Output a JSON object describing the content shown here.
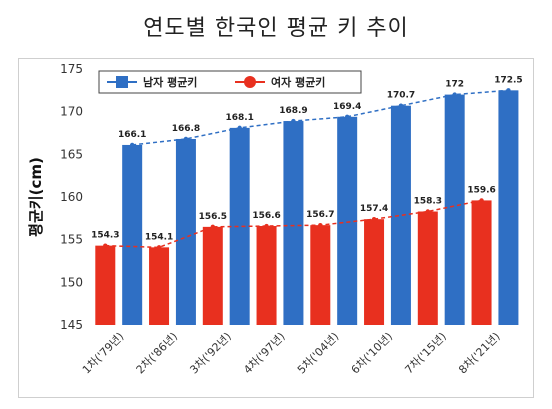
{
  "title": "연도별 한국인 평균 키 추이",
  "chart_data": {
    "type": "bar",
    "title": "",
    "ylabel": "평균키(cm)",
    "xlabel": "",
    "ylim": [
      145,
      175
    ],
    "yticks": [
      145,
      150,
      155,
      160,
      165,
      170,
      175
    ],
    "grid": false,
    "legend_position": "top-left",
    "categories": [
      "1차('79년)",
      "2차('86년)",
      "3차('92년)",
      "4차('97년)",
      "5차('04년)",
      "6차('10년)",
      "7차('15년)",
      "8차('21년)"
    ],
    "series": [
      {
        "name": "남자 평균키",
        "color": "#2f6fc4",
        "values": [
          166.1,
          166.8,
          168.1,
          168.9,
          169.4,
          170.7,
          172,
          172.5
        ],
        "labels": [
          "166.1",
          "166.8",
          "168.1",
          "168.9",
          "169.4",
          "170.7",
          "172",
          "172.5"
        ]
      },
      {
        "name": "여자 평균키",
        "color": "#e8301f",
        "values": [
          154.3,
          154.1,
          156.5,
          156.6,
          156.7,
          157.4,
          158.3,
          159.6
        ],
        "labels": [
          "154.3",
          "154.1",
          "156.5",
          "156.6",
          "156.7",
          "157.4",
          "158.3",
          "159.6"
        ]
      }
    ]
  }
}
